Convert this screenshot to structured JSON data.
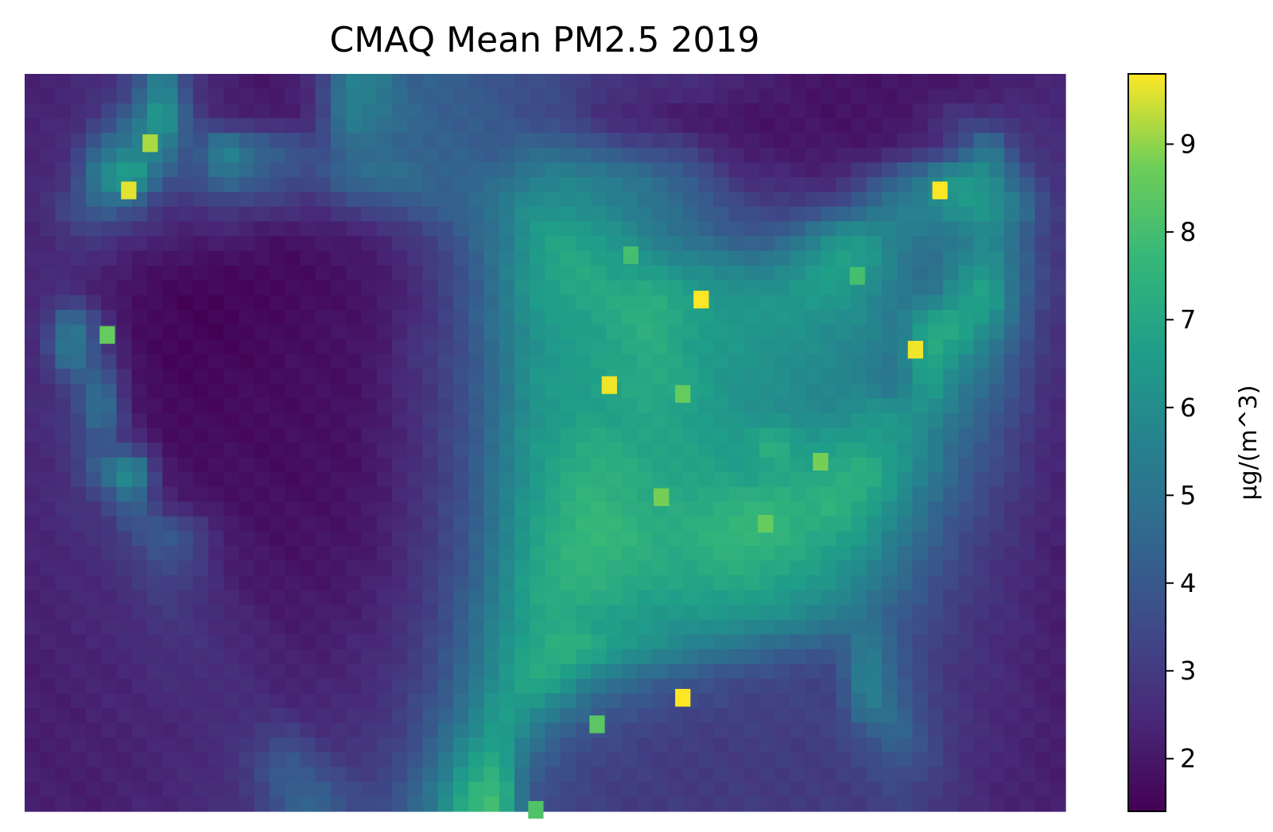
{
  "chart_data": {
    "type": "heatmap",
    "title": "CMAQ Mean PM2.5 2019",
    "colorbar": {
      "label": "µg/(m^3)",
      "range": [
        1.4,
        9.8
      ],
      "ticks": [
        2,
        3,
        4,
        5,
        6,
        7,
        8,
        9
      ],
      "colormap": "viridis"
    },
    "grid": {
      "rows": 25,
      "cols": 34,
      "values": [
        [
          2.3,
          2.4,
          2.6,
          3.4,
          6.0,
          2.9,
          2.2,
          2.0,
          2.1,
          2.6,
          5.6,
          5.4,
          4.3,
          4.4,
          4.0,
          3.9,
          3.6,
          3.5,
          3.0,
          2.7,
          2.6,
          2.6,
          2.5,
          2.3,
          2.1,
          2.0,
          1.9,
          1.9,
          2.0,
          1.9,
          2.1,
          2.1,
          2.3,
          2.4
        ],
        [
          2.3,
          2.5,
          3.0,
          4.6,
          7.2,
          3.3,
          2.3,
          2.2,
          2.1,
          2.7,
          5.5,
          5.2,
          4.6,
          4.2,
          4.2,
          4.0,
          3.6,
          3.4,
          2.8,
          2.4,
          2.2,
          2.0,
          1.9,
          1.9,
          1.9,
          1.9,
          1.9,
          1.9,
          1.9,
          2.4,
          3.0,
          2.8,
          2.6,
          2.5
        ],
        [
          2.4,
          2.6,
          4.8,
          5.4,
          5.7,
          3.5,
          6.0,
          4.8,
          4.1,
          3.4,
          4.6,
          4.5,
          4.4,
          4.3,
          4.3,
          4.0,
          4.5,
          4.5,
          4.1,
          3.6,
          3.4,
          3.2,
          2.5,
          2.1,
          2.0,
          2.0,
          2.0,
          2.0,
          2.2,
          2.4,
          3.4,
          5.4,
          3.0,
          2.6
        ],
        [
          2.4,
          2.9,
          5.8,
          7.6,
          4.0,
          3.6,
          5.1,
          4.2,
          3.8,
          3.5,
          4.6,
          5.0,
          4.8,
          4.4,
          4.4,
          4.7,
          5.3,
          5.6,
          5.6,
          5.2,
          4.8,
          4.3,
          3.4,
          2.6,
          2.5,
          2.3,
          2.4,
          3.2,
          4.4,
          5.4,
          6.6,
          6.2,
          4.0,
          2.8
        ],
        [
          2.5,
          3.6,
          4.6,
          3.8,
          2.9,
          2.7,
          3.0,
          3.0,
          2.8,
          2.6,
          3.2,
          3.5,
          3.9,
          4.2,
          4.6,
          5.1,
          6.2,
          6.1,
          5.8,
          5.6,
          5.0,
          4.6,
          4.0,
          3.4,
          3.2,
          3.2,
          3.6,
          4.6,
          5.3,
          5.8,
          6.4,
          6.4,
          5.4,
          3.0
        ],
        [
          2.4,
          2.8,
          3.0,
          2.6,
          2.3,
          2.2,
          2.3,
          2.0,
          1.9,
          2.0,
          2.1,
          2.3,
          2.8,
          3.4,
          4.2,
          5.1,
          6.3,
          7.0,
          6.6,
          6.1,
          5.5,
          4.8,
          4.4,
          4.0,
          4.0,
          5.2,
          6.2,
          6.4,
          5.6,
          5.0,
          5.2,
          5.9,
          4.4,
          3.0
        ],
        [
          2.4,
          2.6,
          2.3,
          2.0,
          1.9,
          1.7,
          1.7,
          1.7,
          1.6,
          1.8,
          1.9,
          2.1,
          2.5,
          3.1,
          4.0,
          5.1,
          6.4,
          7.0,
          7.1,
          6.6,
          6.3,
          6.0,
          5.8,
          5.4,
          5.6,
          6.1,
          7.0,
          6.5,
          5.4,
          4.6,
          5.6,
          6.4,
          4.5,
          3.0
        ],
        [
          2.5,
          2.6,
          2.2,
          1.8,
          1.6,
          1.5,
          1.5,
          1.6,
          1.6,
          1.7,
          1.8,
          2.0,
          2.4,
          3.0,
          3.9,
          5.1,
          6.4,
          6.9,
          7.0,
          7.2,
          7.4,
          6.8,
          6.4,
          6.2,
          6.3,
          6.6,
          6.4,
          6.0,
          5.2,
          5.0,
          6.4,
          7.0,
          4.6,
          3.0
        ],
        [
          2.5,
          5.7,
          3.0,
          1.8,
          1.6,
          1.5,
          1.5,
          1.6,
          1.7,
          1.8,
          1.9,
          2.0,
          2.4,
          3.0,
          3.9,
          5.1,
          6.2,
          6.6,
          6.8,
          7.1,
          7.4,
          6.9,
          6.5,
          6.5,
          6.3,
          6.2,
          6.0,
          5.8,
          5.2,
          7.0,
          7.2,
          6.2,
          4.2,
          2.8
        ],
        [
          2.5,
          5.8,
          3.2,
          1.8,
          1.6,
          1.5,
          1.6,
          1.6,
          1.7,
          1.8,
          1.8,
          2.0,
          2.8,
          3.1,
          3.8,
          4.9,
          6.1,
          6.5,
          6.7,
          7.0,
          7.2,
          6.8,
          6.5,
          6.3,
          6.2,
          6.0,
          5.8,
          5.6,
          5.0,
          7.4,
          6.3,
          5.2,
          3.8,
          2.7
        ],
        [
          2.5,
          3.3,
          4.8,
          2.0,
          1.6,
          1.6,
          1.6,
          1.7,
          1.7,
          1.8,
          1.8,
          2.1,
          2.5,
          3.1,
          3.8,
          4.9,
          6.3,
          6.6,
          6.7,
          6.9,
          7.2,
          7.0,
          6.4,
          6.2,
          6.1,
          5.9,
          5.7,
          5.5,
          5.0,
          6.8,
          5.6,
          4.6,
          3.6,
          2.6
        ],
        [
          2.5,
          3.0,
          5.4,
          2.2,
          1.7,
          1.6,
          1.7,
          1.7,
          1.7,
          1.8,
          1.8,
          2.1,
          2.5,
          3.1,
          3.8,
          4.9,
          6.2,
          6.5,
          6.7,
          6.8,
          6.9,
          6.8,
          6.5,
          6.2,
          6.0,
          5.8,
          5.9,
          6.2,
          6.3,
          6.1,
          5.0,
          4.2,
          3.3,
          2.5
        ],
        [
          2.5,
          2.9,
          4.0,
          2.6,
          1.8,
          1.7,
          1.7,
          1.7,
          1.7,
          1.8,
          1.8,
          2.1,
          2.5,
          3.1,
          3.8,
          5.2,
          6.3,
          6.8,
          7.2,
          7.0,
          6.9,
          6.8,
          6.7,
          6.5,
          7.6,
          6.4,
          6.6,
          6.8,
          6.4,
          5.6,
          4.6,
          3.8,
          3.1,
          2.4
        ],
        [
          2.4,
          2.8,
          4.6,
          7.0,
          2.1,
          1.8,
          1.8,
          1.8,
          1.7,
          1.8,
          1.8,
          2.1,
          2.5,
          3.1,
          3.8,
          5.2,
          6.3,
          7.0,
          7.4,
          7.3,
          7.0,
          6.9,
          6.8,
          6.6,
          6.8,
          6.9,
          7.2,
          7.4,
          6.5,
          5.4,
          4.4,
          3.6,
          3.0,
          2.4
        ],
        [
          2.4,
          2.7,
          3.1,
          4.6,
          2.6,
          1.9,
          1.9,
          1.8,
          1.8,
          1.8,
          1.9,
          2.1,
          2.6,
          3.1,
          3.9,
          5.3,
          6.5,
          7.2,
          7.6,
          7.4,
          7.1,
          7.1,
          7.2,
          7.4,
          7.6,
          7.2,
          7.6,
          7.0,
          6.0,
          4.9,
          4.0,
          3.3,
          2.8,
          2.3
        ],
        [
          2.4,
          2.6,
          2.7,
          3.6,
          4.2,
          3.6,
          2.1,
          1.9,
          1.8,
          1.9,
          1.9,
          2.1,
          2.6,
          3.2,
          3.9,
          5.4,
          6.6,
          7.3,
          7.8,
          7.6,
          7.3,
          7.2,
          7.5,
          7.8,
          7.6,
          7.3,
          7.0,
          6.5,
          5.5,
          4.5,
          3.7,
          3.1,
          2.7,
          2.3
        ],
        [
          2.3,
          2.5,
          2.6,
          3.0,
          3.8,
          3.2,
          2.3,
          2.0,
          1.9,
          1.9,
          2.0,
          2.2,
          2.6,
          3.2,
          4.0,
          5.4,
          6.8,
          7.4,
          7.6,
          7.4,
          7.2,
          7.1,
          7.3,
          7.4,
          7.2,
          6.9,
          6.5,
          5.9,
          5.0,
          4.1,
          3.4,
          2.9,
          2.6,
          2.2
        ],
        [
          2.3,
          2.4,
          2.5,
          2.7,
          3.2,
          2.9,
          2.4,
          2.1,
          2.0,
          2.0,
          2.1,
          2.3,
          2.7,
          3.3,
          4.2,
          5.6,
          6.9,
          7.4,
          7.3,
          7.1,
          6.9,
          6.8,
          6.9,
          6.9,
          6.7,
          6.4,
          6.0,
          5.4,
          4.5,
          3.8,
          3.2,
          2.8,
          2.5,
          2.2
        ],
        [
          2.3,
          2.4,
          2.4,
          2.6,
          2.9,
          2.8,
          2.5,
          2.3,
          2.1,
          2.1,
          2.2,
          2.4,
          2.8,
          3.4,
          4.4,
          5.8,
          6.8,
          7.0,
          6.8,
          6.6,
          6.4,
          6.3,
          6.3,
          6.2,
          6.0,
          5.7,
          5.3,
          4.8,
          4.1,
          3.5,
          3.0,
          2.7,
          2.5,
          2.2
        ],
        [
          2.2,
          2.3,
          2.4,
          2.5,
          2.7,
          2.7,
          2.6,
          2.4,
          2.2,
          2.2,
          2.3,
          2.5,
          2.9,
          3.5,
          4.6,
          6.0,
          6.9,
          7.6,
          7.2,
          6.6,
          6.1,
          5.6,
          5.2,
          4.8,
          4.4,
          4.1,
          3.8,
          5.6,
          4.0,
          3.3,
          2.9,
          2.6,
          2.4,
          2.2
        ],
        [
          2.2,
          2.3,
          2.3,
          2.4,
          2.6,
          2.6,
          2.6,
          2.5,
          2.3,
          2.3,
          2.4,
          2.6,
          3.0,
          3.7,
          4.8,
          6.2,
          7.2,
          6.9,
          5.6,
          4.8,
          4.4,
          4.0,
          3.7,
          3.5,
          3.4,
          3.3,
          3.3,
          6.0,
          4.2,
          3.2,
          2.8,
          2.6,
          2.4,
          2.2
        ],
        [
          2.2,
          2.2,
          2.3,
          2.4,
          2.5,
          2.5,
          2.6,
          2.6,
          2.5,
          2.4,
          2.5,
          2.7,
          3.2,
          4.0,
          5.2,
          6.6,
          6.4,
          5.2,
          4.4,
          3.9,
          3.6,
          3.4,
          3.3,
          3.2,
          3.2,
          3.2,
          3.3,
          5.4,
          4.6,
          3.3,
          2.8,
          2.5,
          2.4,
          2.2
        ],
        [
          2.2,
          2.2,
          2.3,
          2.3,
          2.4,
          2.5,
          2.6,
          3.0,
          3.4,
          2.8,
          2.7,
          2.9,
          3.4,
          4.4,
          5.8,
          6.9,
          5.2,
          4.2,
          3.6,
          3.4,
          3.2,
          3.1,
          3.1,
          3.1,
          3.1,
          3.1,
          3.2,
          3.8,
          4.6,
          3.6,
          2.8,
          2.5,
          2.4,
          2.2
        ],
        [
          2.2,
          2.2,
          2.2,
          2.3,
          2.4,
          2.5,
          2.6,
          3.2,
          4.4,
          3.6,
          3.0,
          3.1,
          3.6,
          5.0,
          6.6,
          7.4,
          4.4,
          3.6,
          3.3,
          3.2,
          3.1,
          3.0,
          3.0,
          3.0,
          3.0,
          3.0,
          3.1,
          3.3,
          3.8,
          3.4,
          2.8,
          2.5,
          2.3,
          2.2
        ],
        [
          2.2,
          2.2,
          2.2,
          2.3,
          2.4,
          2.5,
          2.6,
          3.0,
          4.0,
          4.6,
          3.6,
          3.4,
          4.2,
          5.4,
          7.6,
          8.0,
          4.0,
          3.4,
          3.2,
          3.1,
          3.0,
          3.0,
          3.0,
          3.0,
          3.0,
          3.0,
          3.0,
          3.1,
          3.3,
          3.1,
          2.7,
          2.4,
          2.3,
          2.2
        ]
      ],
      "hotspots": [
        {
          "row": 3.4,
          "col": 2.9,
          "value": 9.6
        },
        {
          "row": 1.8,
          "col": 3.6,
          "value": 9.2
        },
        {
          "row": 7.1,
          "col": 21.6,
          "value": 9.8
        },
        {
          "row": 8.8,
          "col": 28.6,
          "value": 9.7
        },
        {
          "row": 3.4,
          "col": 29.4,
          "value": 9.8
        },
        {
          "row": 10.0,
          "col": 18.6,
          "value": 9.7
        },
        {
          "row": 10.3,
          "col": 21.0,
          "value": 8.6
        },
        {
          "row": 12.6,
          "col": 25.5,
          "value": 8.8
        },
        {
          "row": 13.8,
          "col": 20.3,
          "value": 8.8
        },
        {
          "row": 20.6,
          "col": 21.0,
          "value": 9.8
        },
        {
          "row": 8.3,
          "col": 2.2,
          "value": 8.6
        },
        {
          "row": 14.7,
          "col": 23.7,
          "value": 8.6
        },
        {
          "row": 21.5,
          "col": 18.2,
          "value": 8.4
        },
        {
          "row": 24.4,
          "col": 16.2,
          "value": 8.2
        },
        {
          "row": 5.6,
          "col": 19.3,
          "value": 8.0
        },
        {
          "row": 6.3,
          "col": 26.7,
          "value": 8.0
        }
      ]
    }
  }
}
